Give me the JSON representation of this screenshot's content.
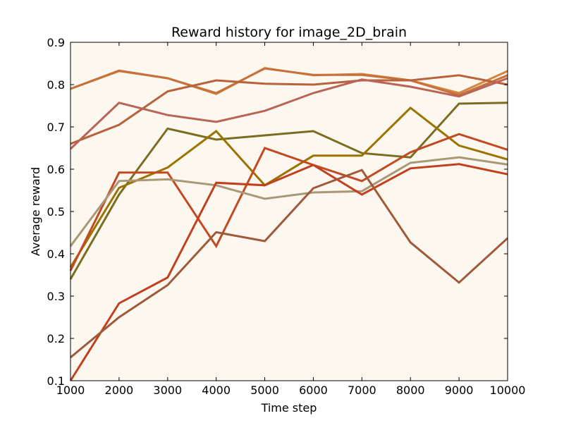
{
  "chart_data": {
    "type": "line",
    "title": "Reward history for image_2D_brain",
    "xlabel": "Time step",
    "ylabel": "Average reward",
    "xlim": [
      1000,
      10000
    ],
    "ylim": [
      0.1,
      0.9
    ],
    "xticks": [
      1000,
      2000,
      3000,
      4000,
      5000,
      6000,
      7000,
      8000,
      9000,
      10000
    ],
    "yticks": [
      0.1,
      0.2,
      0.3,
      0.4,
      0.5,
      0.6,
      0.7,
      0.8,
      0.9
    ],
    "grid": false,
    "background": "#fdf8ef",
    "x": [
      1000,
      2000,
      3000,
      4000,
      5000,
      6000,
      7000,
      8000,
      9000,
      10000
    ],
    "series": [
      {
        "color": "#d4863e",
        "values": [
          0.79,
          0.832,
          0.815,
          0.778,
          0.839,
          0.822,
          0.825,
          0.81,
          0.78,
          0.832
        ]
      },
      {
        "color": "#c6703e",
        "values": [
          0.79,
          0.833,
          0.815,
          0.78,
          0.838,
          0.823,
          0.823,
          0.81,
          0.775,
          0.822
        ]
      },
      {
        "color": "#b8623e",
        "values": [
          0.66,
          0.705,
          0.784,
          0.81,
          0.802,
          0.8,
          0.81,
          0.81,
          0.822,
          0.8
        ]
      },
      {
        "color": "#b86456",
        "values": [
          0.648,
          0.757,
          0.728,
          0.712,
          0.738,
          0.78,
          0.812,
          0.795,
          0.772,
          0.815
        ]
      },
      {
        "color": "#7a6d22",
        "values": [
          0.34,
          0.54,
          0.696,
          0.67,
          0.68,
          0.69,
          0.638,
          0.628,
          0.755,
          0.757
        ]
      },
      {
        "color": "#9c7200",
        "values": [
          0.368,
          0.556,
          0.604,
          0.69,
          0.562,
          0.632,
          0.632,
          0.745,
          0.656,
          0.623
        ]
      },
      {
        "color": "#c24a22",
        "values": [
          0.36,
          0.592,
          0.592,
          0.418,
          0.65,
          0.61,
          0.572,
          0.64,
          0.683,
          0.646
        ]
      },
      {
        "color": "#a89878",
        "values": [
          0.418,
          0.572,
          0.576,
          0.562,
          0.53,
          0.545,
          0.548,
          0.615,
          0.628,
          0.611
        ]
      },
      {
        "color": "#c04020",
        "values": [
          0.1,
          0.283,
          0.344,
          0.568,
          0.562,
          0.61,
          0.54,
          0.602,
          0.612,
          0.588
        ]
      },
      {
        "color": "#9e5a3a",
        "values": [
          0.155,
          0.25,
          0.326,
          0.451,
          0.43,
          0.555,
          0.598,
          0.427,
          0.332,
          0.437
        ]
      }
    ]
  }
}
